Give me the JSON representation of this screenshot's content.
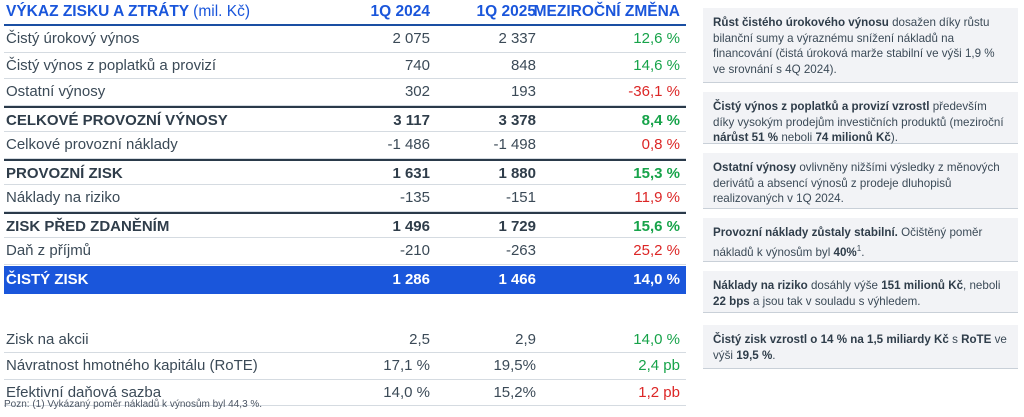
{
  "header": {
    "title": "VÝKAZ ZISKU A ZTRÁTY",
    "unit": "(mil. Kč)",
    "col_2024": "1Q 2024",
    "col_2025": "1Q 2025",
    "col_change": "MEZIROČNÍ ZMĚNA"
  },
  "rows": [
    {
      "label": "Čistý úrokový výnos",
      "v2024": "2 075",
      "v2025": "2 337",
      "change": "12,6 %"
    },
    {
      "label": "Čistý výnos z poplatků a provizí",
      "v2024": "740",
      "v2025": "848",
      "change": "14,6 %"
    },
    {
      "label": "Ostatní výnosy",
      "v2024": "302",
      "v2025": "193",
      "change": "-36,1 %"
    },
    {
      "label": "CELKOVÉ PROVOZNÍ VÝNOSY",
      "v2024": "3 117",
      "v2025": "3 378",
      "change": "8,4 %"
    },
    {
      "label": "Celkové provozní náklady",
      "v2024": "-1 486",
      "v2025": "-1 498",
      "change": "0,8 %"
    },
    {
      "label": "PROVOZNÍ ZISK",
      "v2024": "1 631",
      "v2025": "1 880",
      "change": "15,3 %"
    },
    {
      "label": "Náklady na riziko",
      "v2024": "-135",
      "v2025": "-151",
      "change": "11,9 %"
    },
    {
      "label": "ZISK PŘED ZDANĚNÍM",
      "v2024": "1 496",
      "v2025": "1 729",
      "change": "15,6 %"
    },
    {
      "label": "Daň z příjmů",
      "v2024": "-210",
      "v2025": "-263",
      "change": "25,2 %"
    },
    {
      "label": "ČISTÝ ZISK",
      "v2024": "1 286",
      "v2025": "1 466",
      "change": "14,0 %"
    }
  ],
  "kpis": [
    {
      "label": "Zisk na akcii",
      "v2024": "2,5",
      "v2025": "2,9",
      "change": "14,0 %"
    },
    {
      "label": "Návratnost hmotného kapitálu (RoTE)",
      "v2024": "17,1 %",
      "v2025": "19,5%",
      "change": "2,4 pb"
    },
    {
      "label": "Efektivní daňová sazba",
      "v2024": "14,0 %",
      "v2025": "15,2%",
      "change": "1,2 pb"
    }
  ],
  "footnote": "Pozn: (1) Vykázaný poměr nákladů k výnosům byl 44,3 %.",
  "notes": {
    "n1": {
      "b1": "Růst čistého úrokového výnosu",
      "t1": " dosažen díky růstu bilanční sumy a výraznému snížení nákladů na financování (čistá úroková marže stabilní ve výši 1,9 % ve srovnání s 4Q 2024)."
    },
    "n2": {
      "b1": "Čistý výnos z poplatků a provizí vzrostl",
      "t1": " především díky vysokým prodejům investičních produktů (meziroční ",
      "b2": "nárůst 51 %",
      "t2": " neboli ",
      "b3": "74 milionů Kč",
      "t3": ")."
    },
    "n3": {
      "b1": "Ostatní výnosy",
      "t1": " ovlivněny nižšími výsledky z měnových derivátů a absencí výnosů z prodeje dluhopisů realizovaných v 1Q 2024."
    },
    "n4": {
      "b1": "Provozní náklady zůstaly stabilní.",
      "t1": " Očištěný poměr nákladů k výnosům byl ",
      "b2": "40%",
      "sup": "1",
      "t2": "."
    },
    "n5": {
      "b1": "Náklady na riziko",
      "t1": " dosáhly výše ",
      "b2": "151 milionů Kč",
      "t2": ", neboli ",
      "b3": "22 bps",
      "t3": " a jsou tak v souladu s výhledem."
    },
    "n6": {
      "b1": "Čistý zisk vzrostl o 14 % na 1,5 miliardy Kč",
      "t1": " s ",
      "b2": "RoTE",
      "t2": " ve výši ",
      "b3": "19,5 %",
      "t3": "."
    }
  },
  "colors": {
    "accent": "#1a56db",
    "positive": "#17a34a",
    "negative": "#dc2626"
  }
}
